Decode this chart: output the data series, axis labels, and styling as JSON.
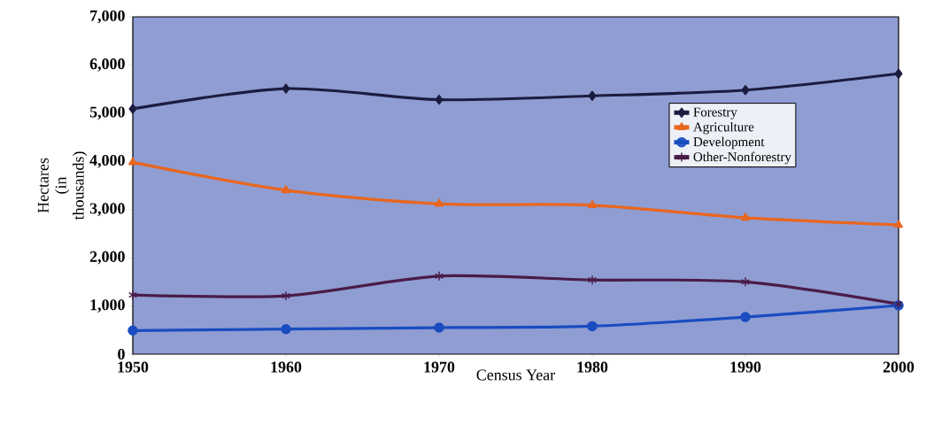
{
  "chart_data": {
    "type": "line",
    "xlabel": "Census Year",
    "ylabel": "Hectares (in thousands)",
    "x": [
      1950,
      1960,
      1970,
      1980,
      1990,
      2000
    ],
    "series": [
      {
        "name": "Forestry",
        "color": "#1c1c40",
        "marker": "diamond",
        "values": [
          5090,
          5510,
          5280,
          5360,
          5480,
          5820
        ]
      },
      {
        "name": "Agriculture",
        "color": "#e8661e",
        "marker": "triangle",
        "values": [
          3980,
          3400,
          3120,
          3090,
          2830,
          2680
        ]
      },
      {
        "name": "Development",
        "color": "#1a4cc0",
        "marker": "circle",
        "values": [
          490,
          520,
          550,
          580,
          770,
          1010
        ]
      },
      {
        "name": "Other-Nonforestry",
        "color": "#4a1c48",
        "marker": "cross",
        "values": [
          1230,
          1210,
          1620,
          1540,
          1500,
          1040
        ]
      }
    ],
    "xlim": [
      1950,
      2000
    ],
    "xticks": [
      1950,
      1960,
      1970,
      1980,
      1990,
      2000
    ],
    "ylim": [
      0,
      7000
    ],
    "yticks": [
      0,
      {
        "value": 1000,
        "label": "1,000"
      },
      {
        "value": 2000,
        "label": "2,000"
      },
      {
        "value": 3000,
        "label": "3,000"
      },
      {
        "value": 4000,
        "label": "4,000"
      },
      {
        "value": 5000,
        "label": "5,000"
      },
      {
        "value": 6000,
        "label": "6,000"
      },
      {
        "value": 7000,
        "label": "7,000"
      }
    ],
    "legend": "right",
    "grid": false
  }
}
